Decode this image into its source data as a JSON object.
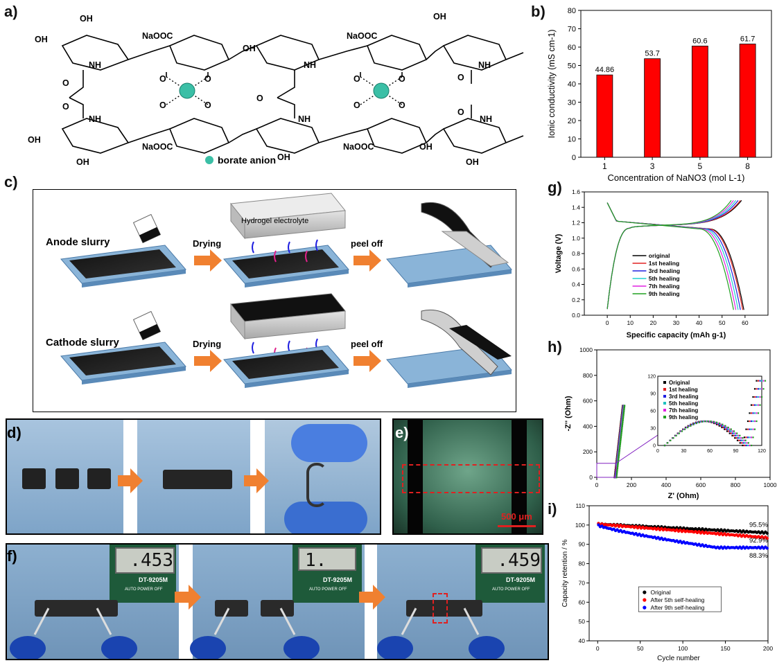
{
  "panels": {
    "a": {
      "label": "a)",
      "legend": "borate anion",
      "groups": {
        "oh": "OH",
        "nh": "NH",
        "o": "O",
        "naooc": "NaOOC",
        "naooc2": "NaOOC"
      }
    },
    "b": {
      "label": "b)"
    },
    "c": {
      "label": "c)",
      "anode": "Anode slurry",
      "cathode": "Cathode slurry",
      "drying": "Drying",
      "peel": "peel off",
      "hydrogel": "Hydrogel electrolyte"
    },
    "d": {
      "label": "d)"
    },
    "e": {
      "label": "e)",
      "scalebar": "500 μm"
    },
    "f": {
      "label": "f)",
      "readings": [
        ".453",
        "1.",
        ".459"
      ],
      "meter_model": "DT-9205M",
      "meter_power": "AUTO POWER OFF"
    },
    "g": {
      "label": "g)"
    },
    "h": {
      "label": "h)"
    },
    "i": {
      "label": "i)"
    }
  },
  "colors": {
    "bar": "#ff0000",
    "panel_border": "#000000",
    "teal": "#3bbfa6",
    "orange": "#f08030",
    "blue_sub": "#8ab4d8",
    "gel": "#d0d0d0",
    "photo_bg": "#aac4dc"
  },
  "chart_data": [
    {
      "id": "b",
      "type": "bar",
      "categories": [
        "1",
        "3",
        "5",
        "8"
      ],
      "values": [
        44.86,
        53.7,
        60.6,
        61.7
      ],
      "data_labels": [
        "44.86",
        "53.7",
        "60.6",
        "61.7"
      ],
      "xlabel": "Concentration of NaNO3 (mol L-1)",
      "ylabel": "Ionic conductivity (mS cm-1)",
      "ylim": [
        0,
        80
      ],
      "yticks": [
        "0",
        "10",
        "20",
        "30",
        "40",
        "50",
        "60",
        "70",
        "80"
      ]
    },
    {
      "id": "g",
      "type": "line",
      "xlabel": "Specific capacity (mAh g-1)",
      "ylabel": "Voltage (V)",
      "xlim": [
        -10,
        70
      ],
      "ylim": [
        0,
        1.6
      ],
      "xticks": [
        "0",
        "10",
        "20",
        "30",
        "40",
        "50",
        "60"
      ],
      "yticks": [
        "0.0",
        "0.2",
        "0.4",
        "0.6",
        "0.8",
        "1.0",
        "1.2",
        "1.4",
        "1.6"
      ],
      "legend_position": "center",
      "series": [
        {
          "name": "original",
          "color": "#000000",
          "end": 59.5
        },
        {
          "name": "1st healing",
          "color": "#e02020",
          "end": 59.0
        },
        {
          "name": "3rd healing",
          "color": "#2020e0",
          "end": 58.0
        },
        {
          "name": "5th healing",
          "color": "#20d0d0",
          "end": 57.0
        },
        {
          "name": "7th healing",
          "color": "#e020e0",
          "end": 56.0
        },
        {
          "name": "9th healing",
          "color": "#20a020",
          "end": 55.0
        }
      ]
    },
    {
      "id": "h",
      "type": "scatter",
      "xlabel": "Z' (Ohm)",
      "ylabel": "-Z'' (Ohm)",
      "xlim": [
        0,
        1000
      ],
      "ylim": [
        0,
        1000
      ],
      "xticks": [
        "0",
        "200",
        "400",
        "600",
        "800",
        "1000"
      ],
      "yticks": [
        "0",
        "200",
        "400",
        "600",
        "800",
        "1000"
      ],
      "inset": {
        "xlim": [
          0,
          120
        ],
        "ylim": [
          0,
          120
        ],
        "xticks": [
          "0",
          "30",
          "60",
          "90",
          "120"
        ],
        "yticks": [
          "0",
          "30",
          "60",
          "90",
          "120"
        ]
      },
      "series": [
        {
          "name": "Original",
          "color": "#000000",
          "rct": 98
        },
        {
          "name": "1st healing",
          "color": "#e02020",
          "rct": 100
        },
        {
          "name": "3rd healing",
          "color": "#2020e0",
          "rct": 102
        },
        {
          "name": "5th healing",
          "color": "#20c0c0",
          "rct": 104
        },
        {
          "name": "7th healing",
          "color": "#e020e0",
          "rct": 106
        },
        {
          "name": "9th healing",
          "color": "#20a020",
          "rct": 108
        }
      ]
    },
    {
      "id": "i",
      "type": "scatter",
      "xlabel": "Cycle number",
      "ylabel": "Capacity retention / %",
      "xlim": [
        -10,
        200
      ],
      "ylim": [
        40,
        110
      ],
      "xticks": [
        "0",
        "50",
        "100",
        "150",
        "200"
      ],
      "yticks": [
        "40",
        "50",
        "60",
        "70",
        "80",
        "90",
        "100",
        "110"
      ],
      "legend_position": "bottom-center",
      "annotations": [
        "95.5%",
        "92.9%",
        "88.3%"
      ],
      "series": [
        {
          "name": "Original",
          "color": "#000000",
          "final": 95.5
        },
        {
          "name": "After 5th self-healing",
          "color": "#ff0000",
          "final": 92.9
        },
        {
          "name": "After 9th self-healing",
          "color": "#0000ff",
          "final": 88.3
        }
      ]
    }
  ]
}
